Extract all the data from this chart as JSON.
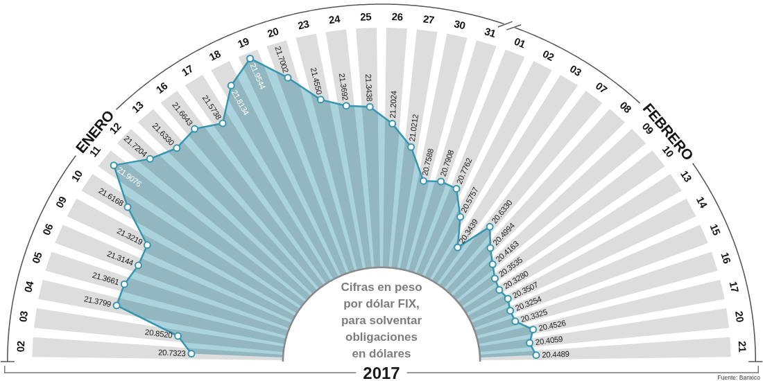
{
  "chart_data": {
    "type": "other",
    "xlabel": "2017",
    "annotations": [
      "ENERO",
      "FEBRERO",
      "Cifras en peso por dólar FIX, para solventar obligaciones en dólares",
      "Fuente: Banxico"
    ],
    "categories": [
      "02",
      "03",
      "04",
      "05",
      "06",
      "09",
      "10",
      "11",
      "12",
      "13",
      "16",
      "17",
      "18",
      "19",
      "20",
      "23",
      "24",
      "25",
      "26",
      "27",
      "30",
      "31",
      "01",
      "02",
      "03",
      "07",
      "08",
      "09",
      "10",
      "13",
      "14",
      "15",
      "16",
      "17",
      "20",
      "21"
    ],
    "series": [
      {
        "values": [
          20.7323,
          20.852,
          21.3799,
          21.3661,
          21.3144,
          21.3219,
          21.6168,
          21.9076,
          21.7204,
          21.633,
          21.6643,
          21.5738,
          21.8134,
          21.9544,
          21.7002,
          21.455,
          21.3692,
          21.3438,
          21.2024,
          21.0212,
          20.7588,
          20.7908,
          20.7762,
          20.5757,
          20.3439,
          20.633,
          20.4994,
          20.4163,
          20.3535,
          20.328,
          20.3507,
          20.3254,
          20.3325,
          20.4526,
          20.4059,
          20.4489
        ],
        "value_labels": [
          "20.7323",
          "20.8520",
          "21.3799",
          "21.3661",
          "21.3144",
          "21.3219",
          "21.6168",
          "21.9076",
          "21.7204",
          "21.6330",
          "21.6643",
          "21.5738",
          "21.8134",
          "21.9544",
          "21.7002",
          "21.4550",
          "21.3692",
          "21.3438",
          "21.2024",
          "21.0212",
          "20.7588",
          "20.7908",
          "20.7762",
          "20.5757",
          "20.3439",
          "20.6330",
          "20.4994",
          "20.4163",
          "20.3535",
          "20.3280",
          "20.3507",
          "20.3254",
          "20.3325",
          "20.4526",
          "20.4059",
          "20.4489"
        ]
      }
    ]
  }
}
